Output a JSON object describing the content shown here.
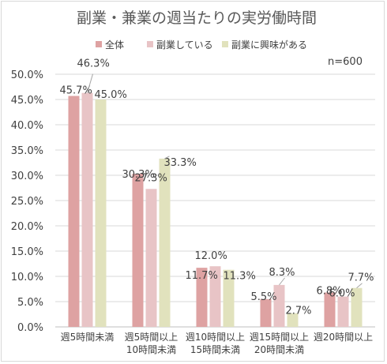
{
  "chart_data": {
    "type": "bar",
    "title": "副業・兼業の週当たりの実労働時間",
    "note": "n=600",
    "categories": [
      [
        "週5時間未満"
      ],
      [
        "週5時間以上",
        "10時間未満"
      ],
      [
        "週10時間以上",
        "15時間未満"
      ],
      [
        "週15時間以上",
        "20時間未満"
      ],
      [
        "週20時間以上"
      ]
    ],
    "series": [
      {
        "name": "全体",
        "color": "#dea2a2",
        "values": [
          45.7,
          30.3,
          11.7,
          5.5,
          6.8
        ],
        "labels": [
          "45.7%",
          "30.3%",
          "11.7%",
          "5.5%",
          "6.8%"
        ]
      },
      {
        "name": "副業している",
        "color": "#e8c4c6",
        "values": [
          46.3,
          27.3,
          12.0,
          8.3,
          6.0
        ],
        "labels": [
          "46.3%",
          "27.3%",
          "12.0%",
          "8.3%",
          "6.0%"
        ]
      },
      {
        "name": "副業に興味がある",
        "color": "#e1e2bd",
        "values": [
          45.0,
          33.3,
          11.3,
          2.7,
          7.7
        ],
        "labels": [
          "45.0%",
          "33.3%",
          "11.3%",
          "2.7%",
          "7.7%"
        ]
      }
    ],
    "yticks": [
      "0.0%",
      "5.0%",
      "10.0%",
      "15.0%",
      "20.0%",
      "25.0%",
      "30.0%",
      "35.0%",
      "40.0%",
      "45.0%",
      "50.0%"
    ],
    "ylim": [
      0,
      50
    ],
    "grid": true,
    "legend": "top"
  }
}
